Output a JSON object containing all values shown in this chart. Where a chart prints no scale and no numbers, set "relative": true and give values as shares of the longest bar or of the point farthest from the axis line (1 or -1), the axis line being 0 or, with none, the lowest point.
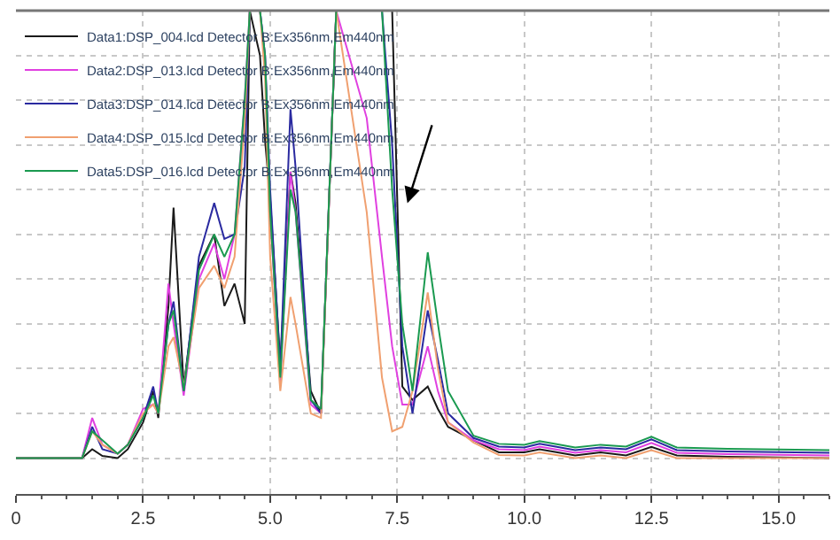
{
  "chart_data": {
    "type": "line",
    "relative": true,
    "grid": true,
    "legend": "top left",
    "marker": "none",
    "line_style": "solid",
    "x": [
      0,
      1.3,
      1.5,
      1.7,
      2.0,
      2.2,
      2.5,
      2.7,
      2.8,
      3.0,
      3.1,
      3.3,
      3.6,
      3.9,
      4.1,
      4.3,
      4.5,
      4.6,
      4.8,
      4.9,
      5.0,
      5.2,
      5.4,
      5.5,
      5.8,
      6.0,
      6.3,
      6.9,
      7.2,
      7.4,
      7.6,
      7.8,
      8.1,
      8.3,
      8.5,
      9.0,
      9.5,
      10.0,
      10.3,
      11.0,
      11.5,
      12.0,
      12.5,
      13.0,
      14.0,
      16.0
    ],
    "xlim": [
      0,
      16
    ],
    "xticks": [
      0,
      2.5,
      {
        "value": 5,
        "label": "5.0"
      },
      7.5,
      {
        "value": 10,
        "label": "10.0"
      },
      12.5,
      {
        "value": 15,
        "label": "15.0"
      }
    ],
    "series": [
      {
        "name": "Data1:DSP_004.lcd Detector B:Ex356nm,Em440nm",
        "color": "#1a1a1a",
        "values": [
          0,
          0,
          0.02,
          0.005,
          0,
          0.02,
          0.08,
          0.15,
          0.09,
          0.34,
          0.56,
          0.16,
          0.43,
          0.5,
          0.34,
          0.39,
          0.3,
          1,
          0.9,
          0.71,
          0.58,
          0.21,
          0.64,
          0.57,
          0.15,
          0.1,
          1,
          1,
          1,
          1,
          0.16,
          0.13,
          0.16,
          0.11,
          0.07,
          0.04,
          0.013,
          0.013,
          0.02,
          0.006,
          0.013,
          0.006,
          0.025,
          0.006,
          0.003,
          0
        ]
      },
      {
        "name": "Data2:DSP_013.lcd Detector B:Ex356nm,Em440nm",
        "color": "#e040e0",
        "values": [
          0,
          0,
          0.09,
          0.03,
          0.01,
          0.03,
          0.11,
          0.12,
          0.1,
          0.39,
          0.3,
          0.14,
          0.4,
          0.48,
          0.4,
          0.5,
          0.8,
          1,
          1,
          0.9,
          0.55,
          0.17,
          0.64,
          0.55,
          0.12,
          0.1,
          1,
          0.76,
          0.45,
          0.25,
          0.12,
          0.12,
          0.25,
          0.15,
          0.08,
          0.04,
          0.02,
          0.018,
          0.026,
          0.012,
          0.018,
          0.013,
          0.034,
          0.012,
          0.009,
          0.006
        ]
      },
      {
        "name": "Data3:DSP_014.lcd Detector B:Ex356nm,Em440nm",
        "color": "#2a2aa0",
        "values": [
          0,
          0,
          0.07,
          0.02,
          0.01,
          0.03,
          0.09,
          0.16,
          0.1,
          0.3,
          0.35,
          0.15,
          0.45,
          0.57,
          0.49,
          0.5,
          0.65,
          1,
          1,
          0.9,
          0.6,
          0.2,
          0.78,
          0.65,
          0.13,
          0.1,
          1,
          1,
          1,
          0.7,
          0.25,
          0.1,
          0.33,
          0.22,
          0.1,
          0.045,
          0.026,
          0.024,
          0.032,
          0.018,
          0.024,
          0.02,
          0.042,
          0.018,
          0.015,
          0.012
        ]
      },
      {
        "name": "Data4:DSP_015.lcd Detector B:Ex356nm,Em440nm",
        "color": "#f0a070",
        "values": [
          0,
          0,
          0.06,
          0.03,
          0.01,
          0.03,
          0.1,
          0.12,
          0.1,
          0.25,
          0.27,
          0.16,
          0.38,
          0.43,
          0.38,
          0.45,
          0.75,
          1,
          1,
          0.85,
          0.45,
          0.15,
          0.36,
          0.3,
          0.1,
          0.09,
          1,
          0.55,
          0.18,
          0.06,
          0.07,
          0.15,
          0.37,
          0.2,
          0.08,
          0.035,
          0.007,
          0.006,
          0.013,
          0.0,
          0.006,
          0.0,
          0.018,
          0.0,
          0.0,
          0.0
        ]
      },
      {
        "name": "Data5:DSP_016.lcd Detector B:Ex356nm,Em440nm",
        "color": "#1a9a50",
        "values": [
          0,
          0,
          0.06,
          0.04,
          0.01,
          0.03,
          0.09,
          0.14,
          0.1,
          0.3,
          0.33,
          0.15,
          0.42,
          0.5,
          0.45,
          0.5,
          0.8,
          1,
          1,
          0.9,
          0.55,
          0.18,
          0.6,
          0.55,
          0.13,
          0.11,
          1,
          1,
          1,
          0.6,
          0.3,
          0.15,
          0.46,
          0.3,
          0.15,
          0.05,
          0.032,
          0.03,
          0.038,
          0.024,
          0.03,
          0.026,
          0.048,
          0.024,
          0.021,
          0.018
        ]
      }
    ]
  }
}
